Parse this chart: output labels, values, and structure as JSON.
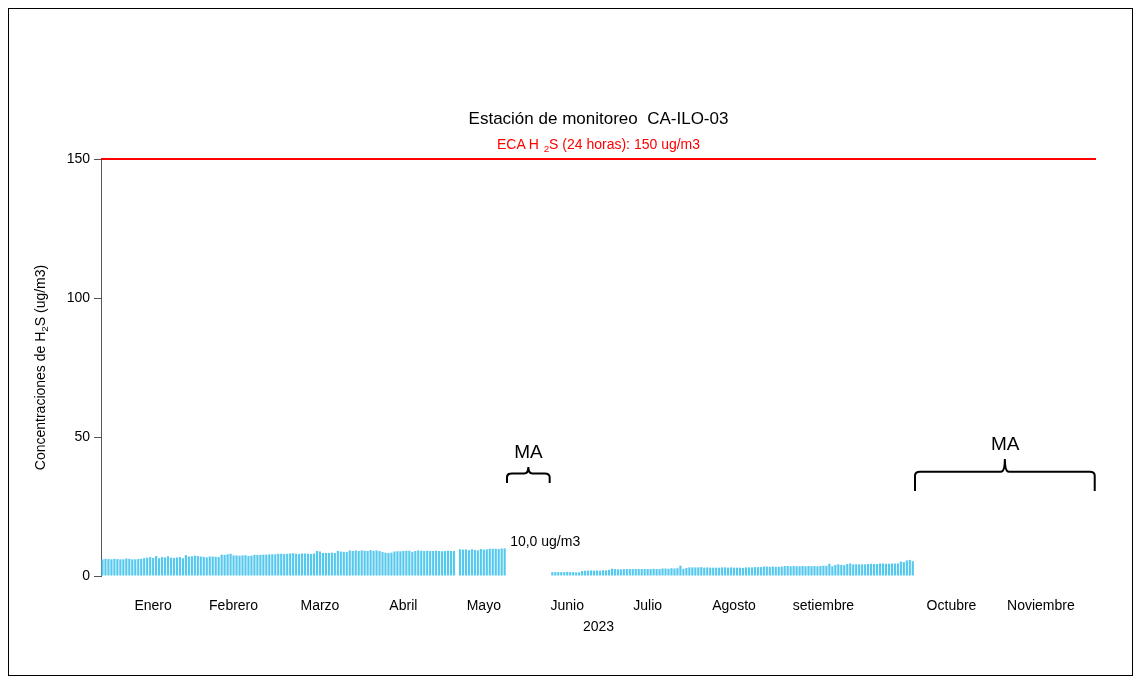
{
  "chart_data": {
    "type": "bar",
    "title": "Estación de monitoreo  CA-ILO-03",
    "xlabel": "2023",
    "ylabel": "Concentraciones de H$_{2}$S (ug/m3)",
    "categories": [
      null,
      null,
      null,
      null,
      null,
      null,
      null,
      null,
      null,
      null,
      null,
      null,
      null,
      null,
      null,
      null,
      null,
      "Enero",
      null,
      null,
      null,
      null,
      null,
      null,
      null,
      null,
      null,
      null,
      null,
      null,
      null,
      null,
      null,
      null,
      null,
      null,
      null,
      null,
      null,
      null,
      null,
      null,
      null,
      null,
      "Febrero",
      null,
      null,
      null,
      null,
      null,
      null,
      null,
      null,
      null,
      null,
      null,
      null,
      null,
      null,
      null,
      null,
      null,
      null,
      null,
      null,
      null,
      null,
      null,
      null,
      null,
      null,
      null,
      null,
      "Marzo",
      null,
      null,
      null,
      null,
      null,
      null,
      null,
      null,
      null,
      null,
      null,
      null,
      null,
      null,
      null,
      null,
      null,
      null,
      null,
      null,
      null,
      null,
      null,
      null,
      null,
      null,
      null,
      "Abril",
      null,
      null,
      null,
      null,
      null,
      null,
      null,
      null,
      null,
      null,
      null,
      null,
      null,
      null,
      null,
      null,
      null,
      null,
      null,
      null,
      null,
      null,
      null,
      null,
      null,
      null,
      "Mayo",
      null,
      null,
      null,
      null,
      null,
      null,
      null,
      null,
      null,
      null,
      null,
      null,
      null,
      null,
      null,
      null,
      null,
      null,
      null,
      null,
      null,
      null,
      null,
      null,
      null,
      null,
      null,
      "Junio",
      null,
      null,
      null,
      null,
      null,
      null,
      null,
      null,
      null,
      null,
      null,
      null,
      null,
      null,
      null,
      null,
      null,
      null,
      null,
      null,
      null,
      null,
      null,
      null,
      null,
      null,
      "Julio",
      null,
      null,
      null,
      null,
      null,
      null,
      null,
      null,
      null,
      null,
      null,
      null,
      null,
      null,
      null,
      null,
      null,
      null,
      null,
      null,
      null,
      null,
      null,
      null,
      null,
      null,
      null,
      null,
      "Agosto",
      null,
      null,
      null,
      null,
      null,
      null,
      null,
      null,
      null,
      null,
      null,
      null,
      null,
      null,
      null,
      null,
      null,
      null,
      null,
      null,
      null,
      null,
      null,
      null,
      null,
      null,
      null,
      null,
      null,
      "setiembre",
      null,
      null,
      null,
      null,
      null,
      null,
      null,
      null,
      null,
      null,
      null,
      null,
      null,
      null,
      null,
      null,
      null,
      null,
      null,
      null,
      null,
      null,
      null,
      null,
      null,
      null,
      null,
      null,
      null,
      null,
      null,
      null,
      null,
      null,
      null,
      null,
      null,
      null,
      null,
      null,
      null,
      null,
      "Octubre",
      null,
      null,
      null,
      null,
      null,
      null,
      null,
      null,
      null,
      null,
      null,
      null,
      null,
      null,
      null,
      null,
      null,
      null,
      null,
      null,
      null,
      null,
      null,
      null,
      null,
      null,
      null,
      null,
      null,
      "Noviembre",
      null,
      null,
      null,
      null,
      null,
      null,
      null,
      null,
      null,
      null,
      null,
      null,
      null,
      null,
      null,
      null,
      null,
      null
    ],
    "values": [
      6.0,
      6.2,
      6.1,
      6.0,
      6.2,
      6.1,
      6.0,
      6.0,
      6.3,
      6.2,
      6.0,
      6.0,
      6.1,
      6.2,
      6.4,
      6.6,
      6.8,
      6.5,
      7.2,
      6.4,
      6.8,
      6.7,
      7.1,
      6.6,
      6.5,
      6.7,
      6.8,
      6.4,
      7.5,
      7.0,
      7.1,
      7.3,
      7.2,
      7.0,
      6.9,
      6.7,
      7.0,
      7.0,
      6.9,
      6.8,
      7.7,
      7.6,
      7.8,
      8.0,
      7.4,
      7.4,
      7.3,
      7.4,
      7.5,
      7.2,
      7.3,
      7.6,
      7.6,
      7.6,
      7.7,
      7.7,
      7.8,
      7.8,
      7.8,
      8.0,
      8.0,
      7.9,
      8.0,
      8.1,
      8.2,
      8.0,
      7.9,
      8.1,
      8.1,
      8.0,
      7.9,
      8.1,
      9.0,
      8.8,
      8.3,
      8.3,
      8.3,
      8.4,
      8.3,
      9.0,
      8.8,
      8.7,
      8.6,
      9.2,
      9.0,
      9.2,
      9.0,
      9.2,
      9.1,
      9.0,
      9.3,
      9.1,
      9.2,
      9.0,
      8.6,
      8.4,
      8.3,
      8.4,
      8.8,
      8.9,
      8.9,
      9.0,
      9.1,
      9.1,
      8.6,
      9.0,
      9.2,
      9.1,
      9.0,
      9.1,
      9.0,
      9.0,
      9.1,
      9.0,
      8.9,
      9.0,
      9.1,
      9.0,
      9.0,
      null,
      9.6,
      9.5,
      9.6,
      9.3,
      9.6,
      9.4,
      9.2,
      9.7,
      9.5,
      9.6,
      9.8,
      9.8,
      9.8,
      9.7,
      9.9,
      9.9,
      null,
      null,
      null,
      null,
      null,
      null,
      null,
      null,
      null,
      null,
      null,
      null,
      null,
      null,
      null,
      1.4,
      1.4,
      1.4,
      1.4,
      1.4,
      1.5,
      1.4,
      1.4,
      1.3,
      1.3,
      1.8,
      1.9,
      1.9,
      2.0,
      1.9,
      2.0,
      1.9,
      2.1,
      2.0,
      2.2,
      2.6,
      2.5,
      2.4,
      2.4,
      2.5,
      2.5,
      2.5,
      2.5,
      2.5,
      2.5,
      2.5,
      2.5,
      2.5,
      2.5,
      2.6,
      2.5,
      2.5,
      2.7,
      2.7,
      2.6,
      2.8,
      2.7,
      2.8,
      3.7,
      2.6,
      2.9,
      3.1,
      3.1,
      3.1,
      3.1,
      3.2,
      3.0,
      3.1,
      3.0,
      3.0,
      3.0,
      3.0,
      3.1,
      3.1,
      3.0,
      3.1,
      3.0,
      3.0,
      3.0,
      2.9,
      3.1,
      3.1,
      3.1,
      3.2,
      3.2,
      3.2,
      3.4,
      3.4,
      3.3,
      3.4,
      3.3,
      3.3,
      3.4,
      3.6,
      3.6,
      3.5,
      3.6,
      3.5,
      3.5,
      3.6,
      3.5,
      3.6,
      3.5,
      3.6,
      3.5,
      3.6,
      3.7,
      3.7,
      4.4,
      3.5,
      4.0,
      4.2,
      4.0,
      3.9,
      4.3,
      4.5,
      4.2,
      4.2,
      4.2,
      4.2,
      4.2,
      4.3,
      4.4,
      4.3,
      4.3,
      4.5,
      4.5,
      4.4,
      4.4,
      4.5,
      4.5,
      4.5,
      5.2,
      5.0,
      5.6,
      5.8,
      5.3,
      null,
      null,
      null,
      null,
      null,
      null,
      null,
      null,
      null,
      null,
      null,
      null,
      null,
      null,
      null,
      null,
      null,
      null,
      null,
      null,
      null,
      null,
      null,
      null,
      null,
      null,
      null,
      null,
      null,
      null,
      null,
      null,
      null,
      null,
      null,
      null,
      null,
      null,
      null,
      null,
      null,
      null,
      null,
      null,
      null,
      null,
      null,
      null,
      null,
      null,
      null,
      null,
      null,
      null,
      null,
      null,
      null,
      null,
      null,
      null,
      null
    ],
    "color": "#55c8ee",
    "ylim": [
      0,
      150
    ],
    "yticks": [
      0,
      50,
      100,
      150
    ],
    "ref_lines": [
      {
        "axis": "y",
        "value": 150,
        "label": "ECA H $_{2}$S (24 horas): 150 ug/m3",
        "color": "#ff0000"
      }
    ],
    "annotations": [
      "MA",
      "MA",
      "10,0 ug/m3"
    ]
  }
}
